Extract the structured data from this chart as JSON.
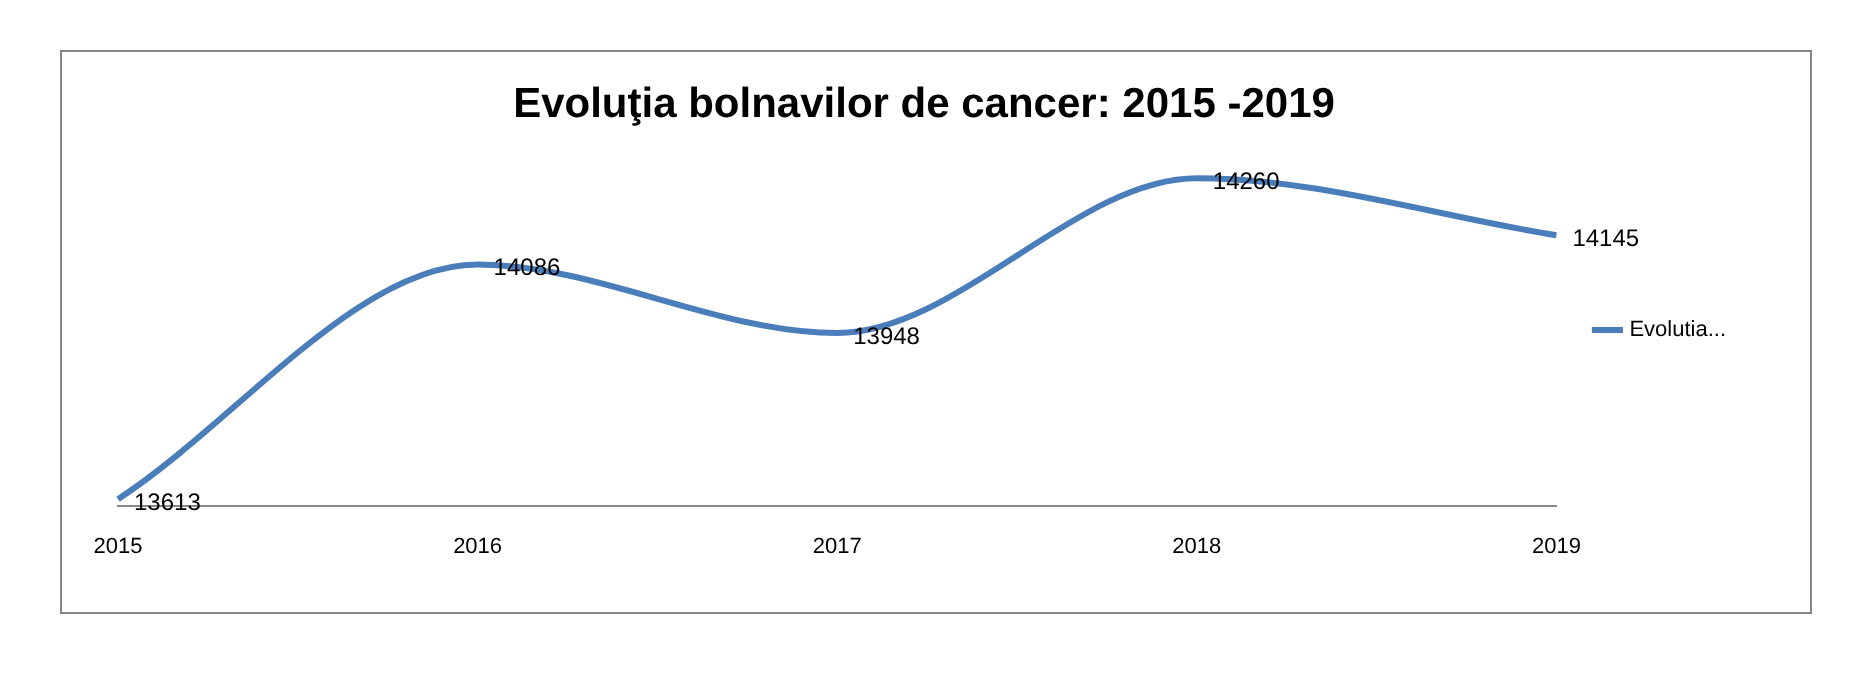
{
  "chart_data": {
    "type": "line",
    "title": "Evoluţia bolnavilor de cancer: 2015 -2019",
    "categories": [
      "2015",
      "2016",
      "2017",
      "2018",
      "2019"
    ],
    "series": [
      {
        "name": "Evolutia...",
        "color": "#4a7ebb",
        "values": [
          13613,
          14086,
          13948,
          14260,
          14145
        ]
      }
    ],
    "tick_labels": "x",
    "grid": false,
    "legend": "right",
    "marker": "none",
    "line_style": "solid",
    "data_labels": true
  }
}
